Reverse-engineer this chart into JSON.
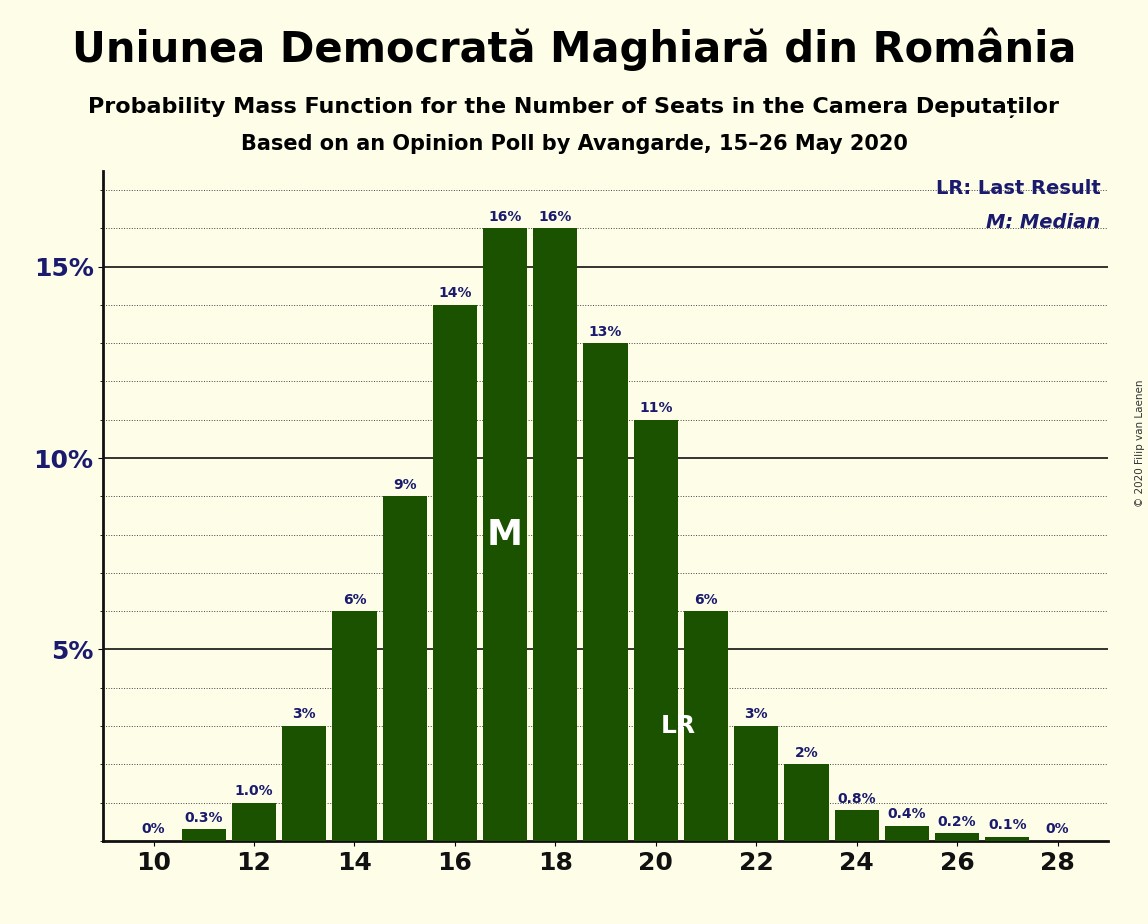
{
  "title": "Uniunea Democrată Maghiară din România",
  "subtitle1": "Probability Mass Function for the Number of Seats in the Camera Deputaților",
  "subtitle2": "Based on an Opinion Poll by Avangarde, 15–26 May 2020",
  "copyright": "© 2020 Filip van Laenen",
  "seats": [
    10,
    11,
    12,
    13,
    14,
    15,
    16,
    17,
    18,
    19,
    20,
    21,
    22,
    23,
    24,
    25,
    26,
    27,
    28
  ],
  "values": [
    0.0,
    0.3,
    1.0,
    3.0,
    6.0,
    9.0,
    14.0,
    16.0,
    16.0,
    13.0,
    11.0,
    6.0,
    3.0,
    2.0,
    0.8,
    0.4,
    0.2,
    0.1,
    0.0
  ],
  "labels": [
    "0%",
    "0.3%",
    "1.0%",
    "3%",
    "6%",
    "9%",
    "14%",
    "16%",
    "16%",
    "13%",
    "11%",
    "6%",
    "3%",
    "2%",
    "0.8%",
    "0.4%",
    "0.2%",
    "0.1%",
    "0%"
  ],
  "bar_color": "#1a5200",
  "background_color": "#fdfde8",
  "median_seat": 17,
  "lr_seat": 21,
  "legend_lr": "LR: Last Result",
  "legend_m": "M: Median",
  "text_color": "#1a1a6e",
  "title_color": "#000000",
  "xlim_min": 9.0,
  "xlim_max": 29.0,
  "ylim_min": 0.0,
  "ylim_max": 17.5,
  "xticks": [
    10,
    12,
    14,
    16,
    18,
    20,
    22,
    24,
    26,
    28
  ],
  "yticks_major": [
    5,
    10,
    15
  ],
  "ytick_labels": [
    "5%",
    "10%",
    "15%"
  ],
  "bar_width": 0.88,
  "title_fontsize": 30,
  "subtitle_fontsize": 16,
  "tick_fontsize": 18,
  "label_fontsize": 10,
  "legend_fontsize": 14
}
